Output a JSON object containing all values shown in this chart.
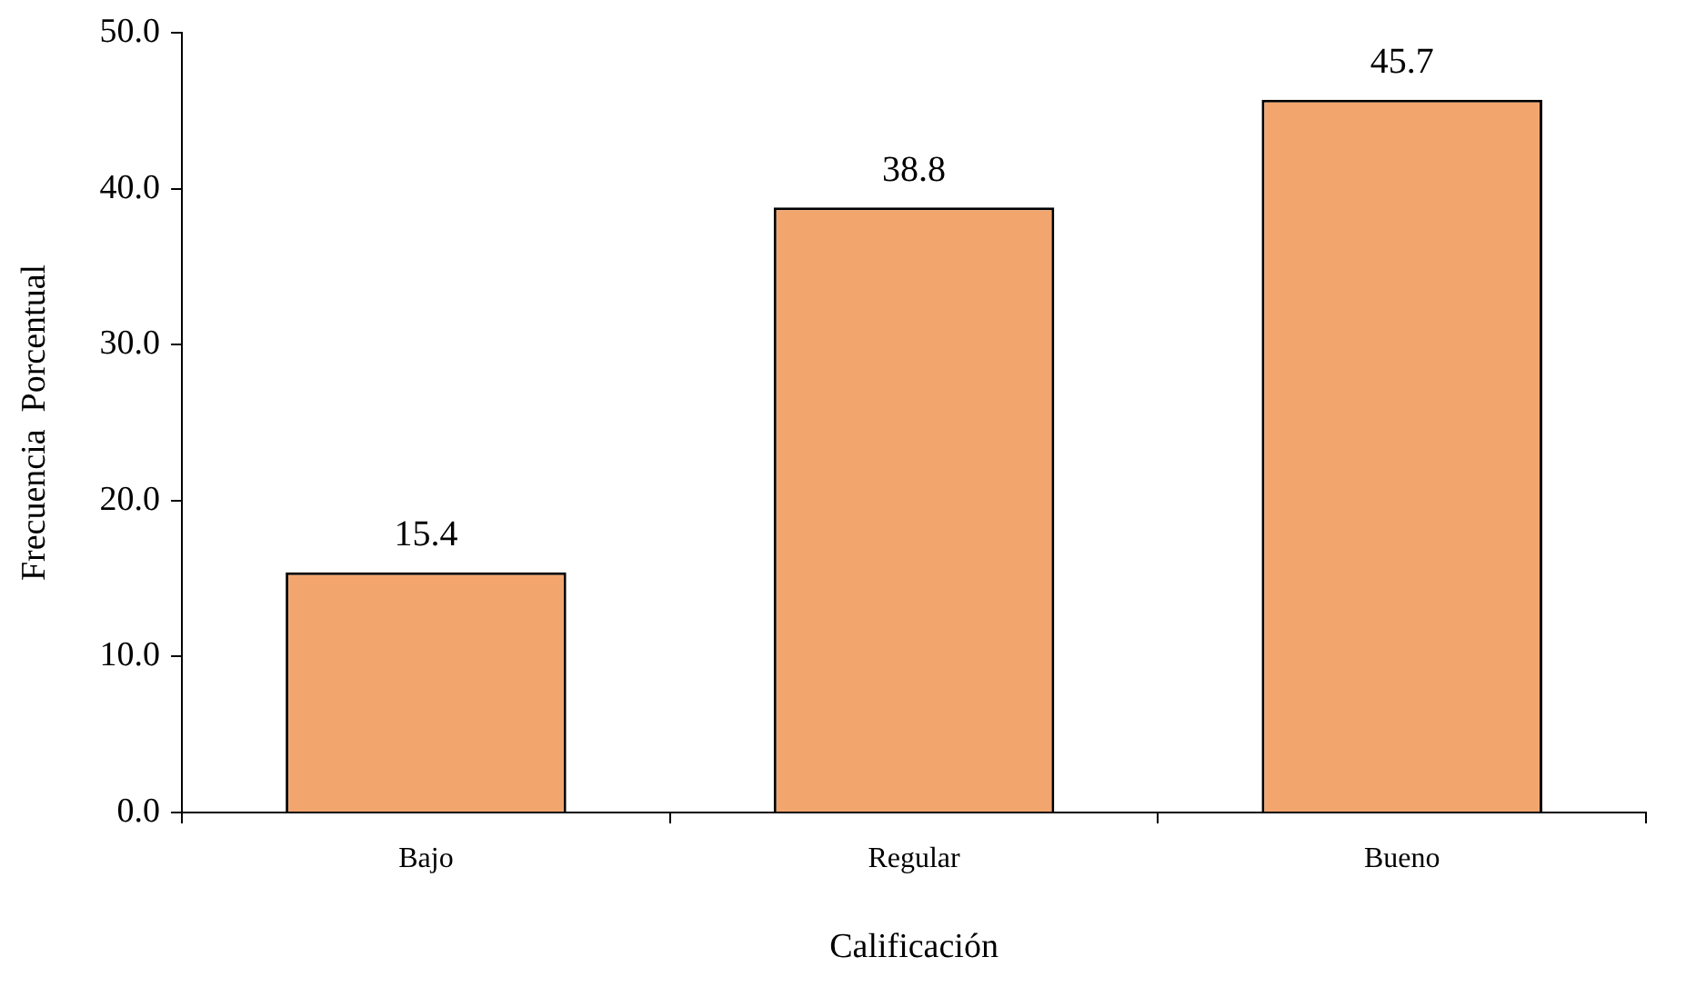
{
  "chart_data": {
    "type": "bar",
    "xlabel": "Calificación",
    "ylabel": "Frecuencia  Porcentual",
    "categories": [
      "Bajo",
      "Regular",
      "Bueno"
    ],
    "values": [
      15.4,
      38.8,
      45.7
    ],
    "color": "#f2a66e",
    "ylim": [
      0,
      50
    ],
    "yticks": [
      {
        "value": 0,
        "label": "0.0"
      },
      {
        "value": 10,
        "label": "10.0"
      },
      {
        "value": 20,
        "label": "20.0"
      },
      {
        "value": 30,
        "label": "30.0"
      },
      {
        "value": 40,
        "label": "40.0"
      },
      {
        "value": 50,
        "label": "50.0"
      }
    ],
    "grid": false,
    "legend": false,
    "data_labels": true
  }
}
